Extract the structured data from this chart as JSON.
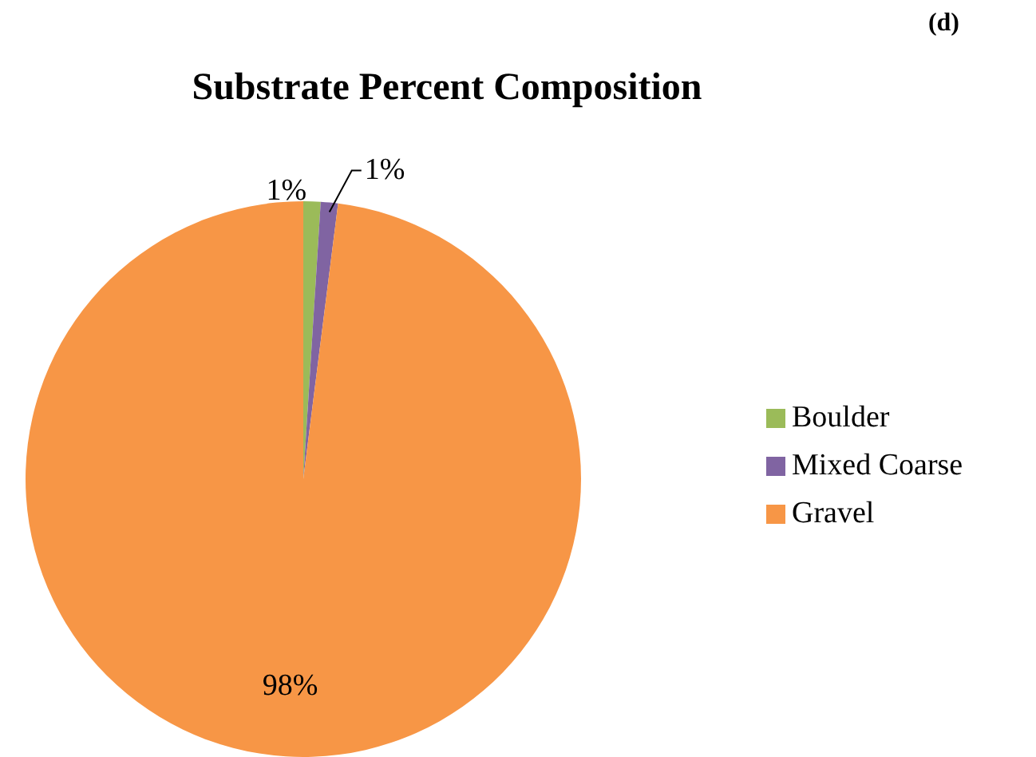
{
  "chart_data": {
    "type": "pie",
    "title": "Substrate Percent Composition",
    "categories": [
      "Boulder",
      "Mixed Coarse",
      "Gravel"
    ],
    "values": [
      1,
      1,
      98
    ],
    "colors": [
      "#9bbb59",
      "#8064a2",
      "#f79646"
    ],
    "value_labels": [
      "1%",
      "1%",
      "98%"
    ],
    "legend": "right",
    "annotations": [
      "(d)"
    ]
  }
}
